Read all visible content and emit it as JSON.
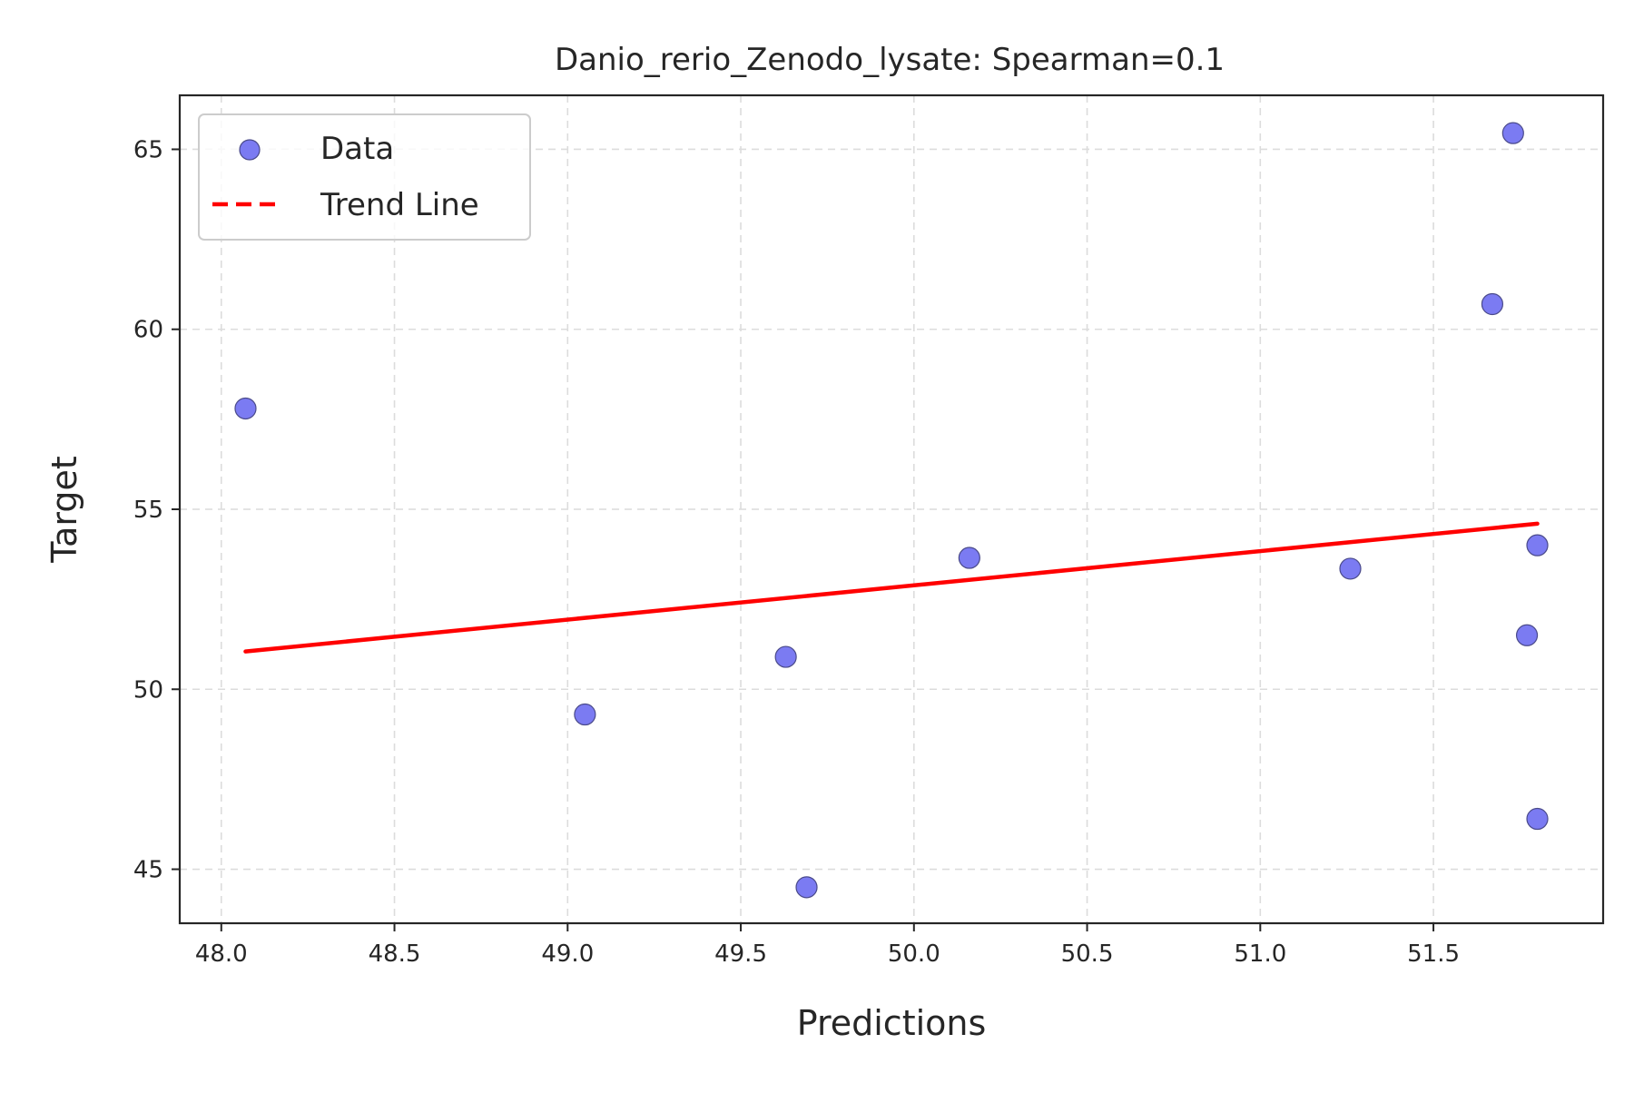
{
  "chart_data": {
    "type": "scatter",
    "title": "Danio_rerio_Zenodo_lysate: Spearman=0.1",
    "xlabel": "Predictions",
    "ylabel": "Target",
    "xlim": [
      47.88,
      51.99
    ],
    "ylim": [
      43.5,
      66.5
    ],
    "x_ticks": [
      48.0,
      48.5,
      49.0,
      49.5,
      50.0,
      50.5,
      51.0,
      51.5
    ],
    "x_tick_labels": [
      "48.0",
      "48.5",
      "49.0",
      "49.5",
      "50.0",
      "50.5",
      "51.0",
      "51.5"
    ],
    "y_ticks": [
      45,
      50,
      55,
      60,
      65
    ],
    "y_tick_labels": [
      "45",
      "50",
      "55",
      "60",
      "65"
    ],
    "grid": true,
    "legend_position": "top-left",
    "series": [
      {
        "name": "Data",
        "kind": "scatter",
        "color": "#7b7bf2",
        "edge_color": "#4a4a8a",
        "points": [
          {
            "x": 48.07,
            "y": 57.8
          },
          {
            "x": 49.05,
            "y": 49.3
          },
          {
            "x": 49.63,
            "y": 50.9
          },
          {
            "x": 49.69,
            "y": 44.5
          },
          {
            "x": 50.16,
            "y": 53.65
          },
          {
            "x": 51.26,
            "y": 53.35
          },
          {
            "x": 51.67,
            "y": 60.7
          },
          {
            "x": 51.73,
            "y": 65.45
          },
          {
            "x": 51.77,
            "y": 51.5
          },
          {
            "x": 51.8,
            "y": 54.0
          },
          {
            "x": 51.8,
            "y": 46.4
          }
        ]
      },
      {
        "name": "Trend Line",
        "kind": "line",
        "style": "dashed",
        "color": "#ff0000",
        "points": [
          {
            "x": 48.07,
            "y": 51.05
          },
          {
            "x": 51.8,
            "y": 54.6
          }
        ]
      }
    ]
  }
}
